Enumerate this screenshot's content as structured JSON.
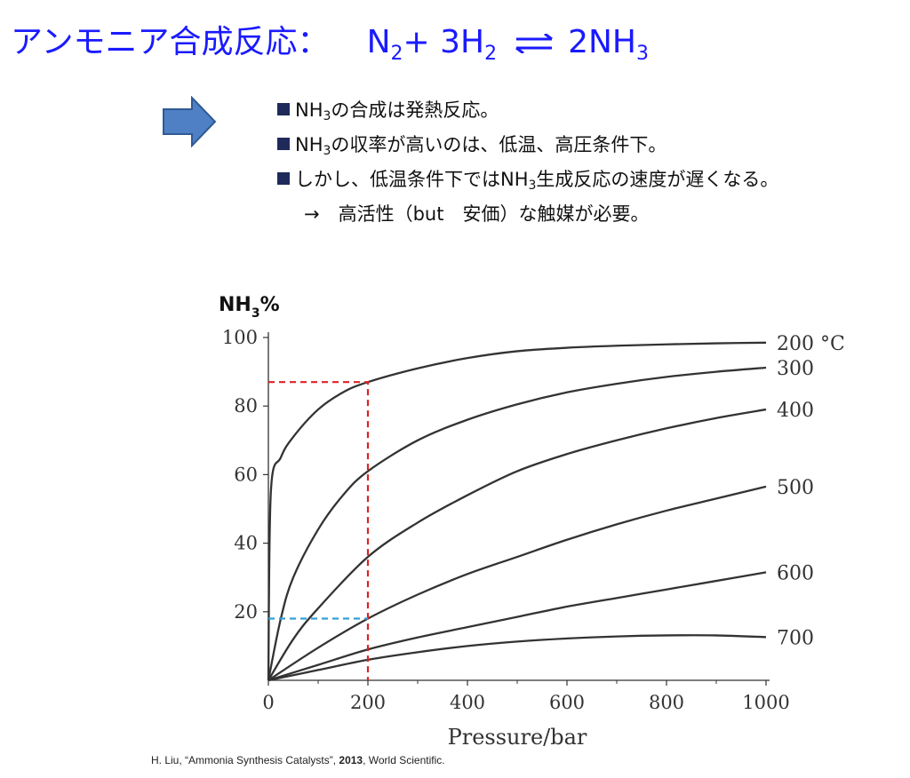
{
  "title": {
    "label": "アンモニア合成反応：",
    "equation": {
      "n2": "N",
      "n2_sub": "2",
      "plus": "+ 3H",
      "h2_sub": "2",
      "product": "2NH",
      "product_sub": "3"
    }
  },
  "bullets": [
    {
      "pre": "NH",
      "sub": "3",
      "post": "の合成は発熱反応。"
    },
    {
      "pre": "NH",
      "sub": "3",
      "post": "の収率が高いのは、低温、高圧条件下。"
    },
    {
      "pre": "しかし、低温条件下ではNH",
      "sub": "3",
      "post": "生成反応の速度が遅くなる。"
    }
  ],
  "note": "→　高活性（but　安価）な触媒が必要。",
  "citation": {
    "prefix": "H. Liu, “Ammonia Synthesis Catalysts”, ",
    "year": "2013",
    "suffix": ", World Scientific."
  },
  "colors": {
    "title": "#1a1aff",
    "arrow_fill": "#4f7fc4",
    "bullet_square": "#1f2a5a",
    "curve": "#333333",
    "red_guide": "#dd2222",
    "blue_guide": "#33a0d8"
  },
  "chart_data": {
    "type": "line",
    "ylabel_main": "NH",
    "ylabel_sub": "3",
    "ylabel_suffix": "%",
    "xlabel": "Pressure/bar",
    "xlim": [
      0,
      1000
    ],
    "ylim": [
      0,
      100
    ],
    "x_ticks": [
      0,
      200,
      400,
      600,
      800,
      1000
    ],
    "y_ticks": [
      20,
      40,
      60,
      80,
      100
    ],
    "grid": false,
    "series": [
      {
        "name": "200 °C",
        "x": [
          0,
          5,
          25,
          50,
          100,
          150,
          200,
          300,
          400,
          500,
          600,
          700,
          800,
          900,
          1000
        ],
        "y": [
          0,
          55,
          65,
          71,
          79,
          84,
          87,
          91,
          94,
          96,
          97,
          97.6,
          98,
          98.3,
          98.5
        ]
      },
      {
        "name": "300",
        "x": [
          0,
          25,
          50,
          100,
          150,
          200,
          300,
          400,
          500,
          600,
          700,
          800,
          900,
          1000
        ],
        "y": [
          0,
          18,
          30,
          44,
          54,
          61,
          70,
          76,
          80.5,
          84,
          86.5,
          88.5,
          90,
          91.2
        ]
      },
      {
        "name": "400",
        "x": [
          0,
          50,
          100,
          200,
          300,
          400,
          500,
          600,
          700,
          800,
          900,
          1000
        ],
        "y": [
          0,
          12,
          21,
          36,
          46,
          54,
          61,
          66,
          70,
          73.5,
          76.5,
          79
        ]
      },
      {
        "name": "500",
        "x": [
          0,
          100,
          200,
          300,
          400,
          500,
          600,
          700,
          800,
          900,
          1000
        ],
        "y": [
          0,
          9.5,
          18,
          25,
          31,
          36,
          41,
          45.5,
          49.5,
          53,
          56.5
        ]
      },
      {
        "name": "600",
        "x": [
          0,
          100,
          200,
          300,
          400,
          500,
          600,
          700,
          800,
          900,
          1000
        ],
        "y": [
          0,
          4.5,
          9,
          12.5,
          15.5,
          18.5,
          21.5,
          24,
          26.5,
          29,
          31.5
        ]
      },
      {
        "name": "700",
        "x": [
          0,
          100,
          200,
          300,
          400,
          500,
          600,
          700,
          800,
          900,
          1000
        ],
        "y": [
          0,
          3,
          6,
          8.2,
          10,
          11.3,
          12.2,
          12.8,
          13.1,
          13.1,
          12.6
        ]
      }
    ],
    "guides": [
      {
        "name": "red",
        "x": 200,
        "y": 87
      },
      {
        "name": "blue",
        "x": 200,
        "y": 18
      }
    ]
  }
}
